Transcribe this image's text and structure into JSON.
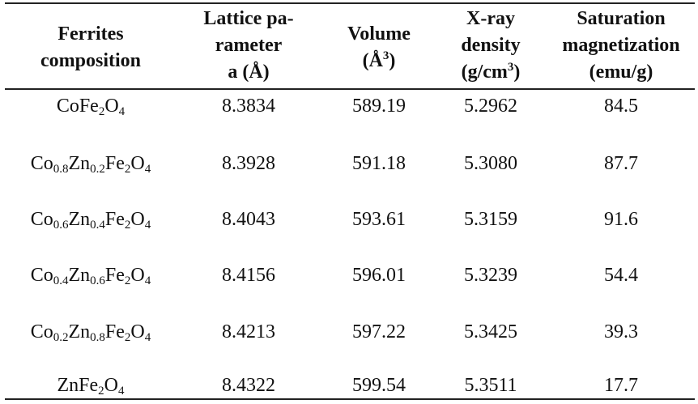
{
  "table": {
    "headers": {
      "composition": [
        "Ferrites",
        "composition"
      ],
      "lattice": [
        "Lattice pa-",
        "rameter",
        "a (Å)"
      ],
      "volume": {
        "line1": "Volume",
        "line2_pre": "(Å",
        "line2_sup": "3",
        "line2_post": ")"
      },
      "density": {
        "line1": "X-ray",
        "line2": "density",
        "line3_pre": "(g/cm",
        "line3_sup": "3",
        "line3_post": ")"
      },
      "saturation": [
        "Saturation",
        "magnetization",
        "(emu/g)"
      ]
    },
    "rows": [
      {
        "composition": [
          {
            "t": "CoFe"
          },
          {
            "s": "2"
          },
          {
            "t": "O"
          },
          {
            "s": "4"
          }
        ],
        "lattice": "8.3834",
        "volume": "589.19",
        "density": "5.2962",
        "saturation": "84.5"
      },
      {
        "composition": [
          {
            "t": "Co"
          },
          {
            "s": "0.8"
          },
          {
            "t": "Zn"
          },
          {
            "s": "0.2"
          },
          {
            "t": "Fe"
          },
          {
            "s": "2"
          },
          {
            "t": "O"
          },
          {
            "s": "4"
          }
        ],
        "lattice": "8.3928",
        "volume": "591.18",
        "density": "5.3080",
        "saturation": "87.7"
      },
      {
        "composition": [
          {
            "t": "Co"
          },
          {
            "s": "0.6"
          },
          {
            "t": "Zn"
          },
          {
            "s": "0.4"
          },
          {
            "t": "Fe"
          },
          {
            "s": "2"
          },
          {
            "t": "O"
          },
          {
            "s": "4"
          }
        ],
        "lattice": "8.4043",
        "volume": "593.61",
        "density": "5.3159",
        "saturation": "91.6"
      },
      {
        "composition": [
          {
            "t": "Co"
          },
          {
            "s": "0.4"
          },
          {
            "t": "Zn"
          },
          {
            "s": "0.6"
          },
          {
            "t": "Fe"
          },
          {
            "s": "2"
          },
          {
            "t": "O"
          },
          {
            "s": "4"
          }
        ],
        "lattice": "8.4156",
        "volume": "596.01",
        "density": "5.3239",
        "saturation": "54.4"
      },
      {
        "composition": [
          {
            "t": "Co"
          },
          {
            "s": "0.2"
          },
          {
            "t": "Zn"
          },
          {
            "s": "0.8"
          },
          {
            "t": "Fe"
          },
          {
            "s": "2"
          },
          {
            "t": "O"
          },
          {
            "s": "4"
          }
        ],
        "lattice": "8.4213",
        "volume": "597.22",
        "density": "5.3425",
        "saturation": "39.3"
      },
      {
        "composition": [
          {
            "t": "ZnFe"
          },
          {
            "s": "2"
          },
          {
            "t": "O"
          },
          {
            "s": "4"
          }
        ],
        "lattice": "8.4322",
        "volume": "599.54",
        "density": "5.3511",
        "saturation": "17.7"
      }
    ]
  }
}
